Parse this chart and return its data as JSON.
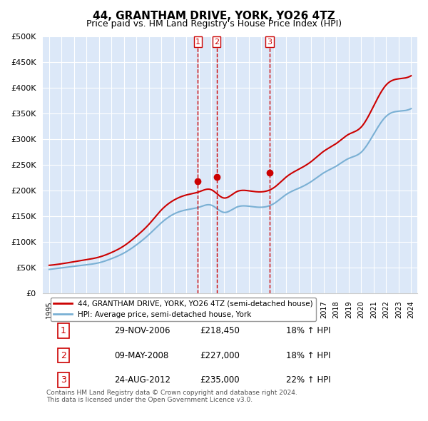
{
  "title": "44, GRANTHAM DRIVE, YORK, YO26 4TZ",
  "subtitle": "Price paid vs. HM Land Registry's House Price Index (HPI)",
  "ylabel_ticks": [
    "£0",
    "£50K",
    "£100K",
    "£150K",
    "£200K",
    "£250K",
    "£300K",
    "£350K",
    "£400K",
    "£450K",
    "£500K"
  ],
  "ytick_values": [
    0,
    50000,
    100000,
    150000,
    200000,
    250000,
    300000,
    350000,
    400000,
    450000,
    500000
  ],
  "ylim": [
    0,
    500000
  ],
  "background_color": "#f0f4ff",
  "plot_bg_color": "#dce8f8",
  "grid_color": "#ffffff",
  "sale_dates": [
    "2006-11-29",
    "2008-05-09",
    "2012-08-24"
  ],
  "sale_prices": [
    218450,
    227000,
    235000
  ],
  "sale_labels": [
    "1",
    "2",
    "3"
  ],
  "sale_label_color": "#cc0000",
  "legend_label_red": "44, GRANTHAM DRIVE, YORK, YO26 4TZ (semi-detached house)",
  "legend_label_blue": "HPI: Average price, semi-detached house, York",
  "red_line_color": "#cc0000",
  "blue_line_color": "#7ab0d4",
  "table_rows": [
    [
      "1",
      "29-NOV-2006",
      "£218,450",
      "18% ↑ HPI"
    ],
    [
      "2",
      "09-MAY-2008",
      "£227,000",
      "18% ↑ HPI"
    ],
    [
      "3",
      "24-AUG-2012",
      "£235,000",
      "22% ↑ HPI"
    ]
  ],
  "footer_text": "Contains HM Land Registry data © Crown copyright and database right 2024.\nThis data is licensed under the Open Government Licence v3.0.",
  "hpi_years": [
    1995,
    1996,
    1997,
    1998,
    1999,
    2000,
    2001,
    2002,
    2003,
    2004,
    2005,
    2006,
    2007,
    2008,
    2009,
    2010,
    2011,
    2012,
    2013,
    2014,
    2015,
    2016,
    2017,
    2018,
    2019,
    2020,
    2021,
    2022,
    2023,
    2024
  ],
  "hpi_values": [
    47000,
    50000,
    53000,
    56000,
    60000,
    68000,
    79000,
    95000,
    115000,
    138000,
    155000,
    163000,
    168000,
    172000,
    158000,
    168000,
    170000,
    168000,
    175000,
    193000,
    205000,
    218000,
    235000,
    248000,
    263000,
    275000,
    310000,
    345000,
    355000,
    360000
  ],
  "property_years": [
    1995,
    1996,
    1997,
    1998,
    1999,
    2000,
    2001,
    2002,
    2003,
    2004,
    2005,
    2006,
    2007,
    2008,
    2009,
    2010,
    2011,
    2012,
    2013,
    2014,
    2015,
    2016,
    2017,
    2018,
    2019,
    2020,
    2021,
    2022,
    2023,
    2024
  ],
  "property_values": [
    55000,
    58000,
    62000,
    66000,
    71000,
    80000,
    93000,
    112000,
    135000,
    163000,
    182000,
    192000,
    198000,
    202000,
    186000,
    198000,
    200000,
    198000,
    206000,
    227000,
    242000,
    257000,
    277000,
    292000,
    310000,
    324000,
    365000,
    406000,
    418000,
    424000
  ],
  "xtick_years": [
    1995,
    1996,
    1997,
    1998,
    1999,
    2000,
    2001,
    2002,
    2003,
    2004,
    2005,
    2006,
    2007,
    2008,
    2009,
    2010,
    2011,
    2012,
    2013,
    2014,
    2015,
    2016,
    2017,
    2018,
    2019,
    2020,
    2021,
    2022,
    2023,
    2024
  ]
}
